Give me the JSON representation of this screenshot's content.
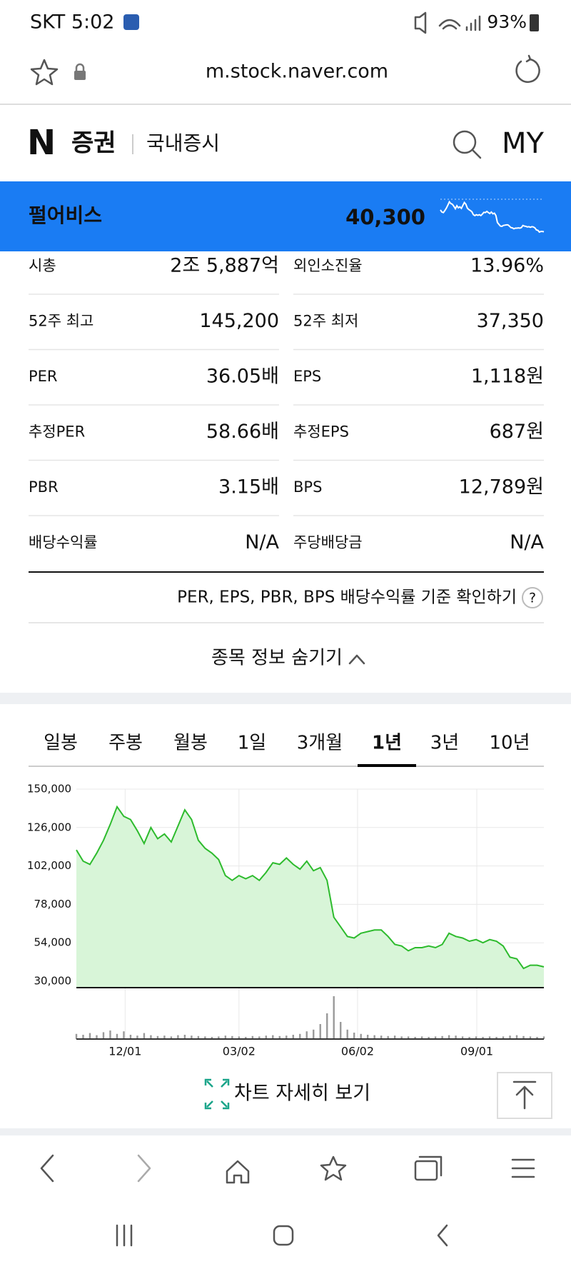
{
  "status_bar": {
    "carrier_time": "SKT 5:02",
    "battery": "93%"
  },
  "address_bar": {
    "url": "m.stock.naver.com"
  },
  "header": {
    "logo": "N",
    "brand": "증권",
    "section": "국내증시",
    "my": "MY"
  },
  "stock": {
    "name": "펄어비스",
    "price": "40,300"
  },
  "info": {
    "rows": [
      [
        "시총",
        "2조 5,887억",
        "외인소진율",
        "13.96%"
      ],
      [
        "52주 최고",
        "145,200",
        "52주 최저",
        "37,350"
      ],
      [
        "PER",
        "36.05배",
        "EPS",
        "1,118원"
      ],
      [
        "추정PER",
        "58.66배",
        "추정EPS",
        "687원"
      ],
      [
        "PBR",
        "3.15배",
        "BPS",
        "12,789원"
      ],
      [
        "배당수익률",
        "N/A",
        "주당배당금",
        "N/A"
      ]
    ]
  },
  "note": "PER, EPS, PBR, BPS 배당수익률 기준 확인하기",
  "help": "?",
  "toggle": "종목 정보 숨기기",
  "tabs": {
    "items": [
      "일봉",
      "주봉",
      "월봉",
      "1일",
      "3개월",
      "1년",
      "3년",
      "10년"
    ],
    "selected": 5
  },
  "chart_data": {
    "type": "area",
    "color": "#2dbb2d",
    "fill": "#d8f5d8",
    "grid": true,
    "values": [
      112000,
      105000,
      103000,
      110000,
      118000,
      128000,
      139000,
      133000,
      131000,
      124000,
      116000,
      126000,
      119000,
      122000,
      117000,
      127000,
      137000,
      131000,
      118000,
      113000,
      110000,
      106000,
      96000,
      93000,
      96000,
      94000,
      96000,
      93000,
      98000,
      104000,
      103000,
      107000,
      103000,
      100000,
      105000,
      99000,
      101000,
      93000,
      70000,
      64000,
      58000,
      57000,
      60000,
      61000,
      62000,
      62000,
      58000,
      53000,
      52000,
      49000,
      51000,
      51000,
      52000,
      51000,
      53000,
      60000,
      58000,
      57000,
      55000,
      56000,
      54000,
      56000,
      55000,
      52000,
      45000,
      44000,
      38000,
      40000,
      40000,
      39000
    ],
    "volume": [
      12,
      10,
      14,
      9,
      16,
      20,
      12,
      18,
      10,
      8,
      14,
      9,
      7,
      8,
      6,
      9,
      10,
      8,
      7,
      6,
      5,
      6,
      8,
      7,
      6,
      5,
      7,
      6,
      8,
      9,
      7,
      8,
      10,
      12,
      18,
      22,
      35,
      60,
      100,
      40,
      22,
      15,
      12,
      10,
      9,
      8,
      7,
      8,
      6,
      6,
      5,
      6,
      5,
      6,
      7,
      9,
      8,
      6,
      5,
      6,
      5,
      6,
      5,
      6,
      8,
      9,
      7,
      6,
      5,
      6
    ],
    "xlim": [
      0,
      69
    ],
    "xticks": [
      {
        "value": 7.2,
        "label": "12/01"
      },
      {
        "value": 24,
        "label": "03/02"
      },
      {
        "value": 41.5,
        "label": "06/02"
      },
      {
        "value": 59.1,
        "label": "09/01"
      }
    ],
    "ylim": [
      26000,
      150000
    ],
    "yticks": [
      {
        "value": 150000,
        "label": "150,000"
      },
      {
        "value": 126000,
        "label": "126,000"
      },
      {
        "value": 102000,
        "label": "102,000"
      },
      {
        "value": 78000,
        "label": "78,000"
      },
      {
        "value": 54000,
        "label": "54,000"
      },
      {
        "value": 30000,
        "label": "30,000"
      }
    ]
  },
  "detail_button": "차트 자세히 보기"
}
